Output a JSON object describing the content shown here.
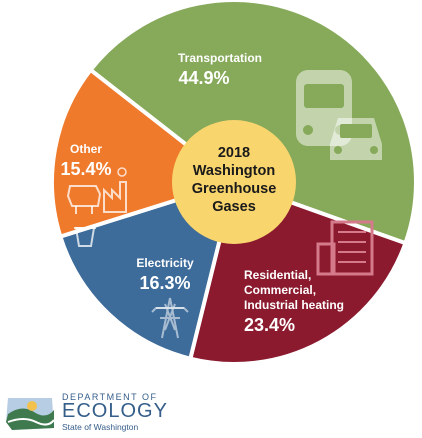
{
  "chart_data": {
    "type": "pie",
    "title": "2018 Washington Greenhouse Gases",
    "title_lines": [
      "2018",
      "Washington",
      "Greenhouse",
      "Gases"
    ],
    "slices": [
      {
        "label": "Transportation",
        "label_lines": [
          "Transportation"
        ],
        "value": 44.9,
        "value_text": "44.9%",
        "color": "#86a95a",
        "icon": "bus-car-icon"
      },
      {
        "label": "Residential, Commercial, Industrial heating",
        "label_lines": [
          "Residential,",
          "Commercial,",
          "Industrial heating"
        ],
        "value": 23.4,
        "value_text": "23.4%",
        "color": "#8b1a2e",
        "icon": "building-icon"
      },
      {
        "label": "Electricity",
        "label_lines": [
          "Electricity"
        ],
        "value": 16.3,
        "value_text": "16.3%",
        "color": "#3d6b9a",
        "icon": "power-tower-icon"
      },
      {
        "label": "Other",
        "label_lines": [
          "Other"
        ],
        "value": 15.4,
        "value_text": "15.4%",
        "color": "#f07a2b",
        "icon": "cow-factory-trash-icon"
      }
    ],
    "center_color": "#f9d56e"
  },
  "logo": {
    "line1": "DEPARTMENT OF",
    "line2": "ECOLOGY",
    "line3": "State of Washington"
  }
}
